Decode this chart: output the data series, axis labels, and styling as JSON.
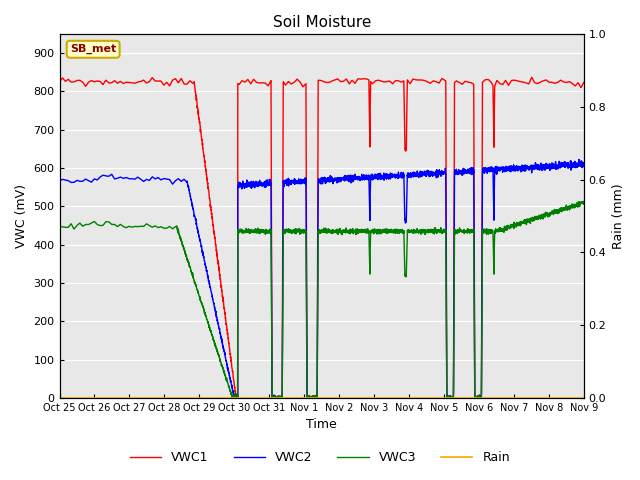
{
  "title": "Soil Moisture",
  "xlabel": "Time",
  "ylabel_left": "VWC (mV)",
  "ylabel_right": "Rain (mm)",
  "ylim_left": [
    0,
    950
  ],
  "ylim_right": [
    0,
    1.0
  ],
  "yticks_left": [
    0,
    100,
    200,
    300,
    400,
    500,
    600,
    700,
    800,
    900
  ],
  "yticks_right": [
    0.0,
    0.2,
    0.4,
    0.6,
    0.8,
    1.0
  ],
  "annotation": "SB_met",
  "legend_entries": [
    "VWC1",
    "VWC2",
    "VWC3",
    "Rain"
  ],
  "legend_colors": [
    "red",
    "blue",
    "green",
    "orange"
  ],
  "plot_bg_color": "#e8e8e8",
  "xtick_labels": [
    "Oct 25",
    "Oct 26",
    "Oct 27",
    "Oct 28",
    "Oct 29",
    "Oct 30",
    "Oct 31",
    "Nov 1",
    "Nov 2",
    "Nov 3",
    "Nov 4",
    "Nov 5",
    "Nov 6",
    "Nov 7",
    "Nov 8",
    "Nov 9"
  ],
  "vwc1_base": 825,
  "vwc2_base": 565,
  "vwc3_base": 447,
  "drop_day": 3.85,
  "recover_day": 5.05,
  "events": [
    {
      "day": 6.05,
      "dur": 0.35,
      "vwc1_low": 0,
      "vwc2_low": 0,
      "vwc3_low": 0
    },
    {
      "day": 7.05,
      "dur": 0.35,
      "vwc1_low": 0,
      "vwc2_low": 0,
      "vwc3_low": 0
    },
    {
      "day": 8.85,
      "dur": 0.05,
      "vwc1_low": 650,
      "vwc2_low": 460,
      "vwc3_low": 320
    },
    {
      "day": 9.85,
      "dur": 0.1,
      "vwc1_low": 650,
      "vwc2_low": 460,
      "vwc3_low": 320
    },
    {
      "day": 11.05,
      "dur": 0.25,
      "vwc1_low": 0,
      "vwc2_low": 0,
      "vwc3_low": 0
    },
    {
      "day": 11.85,
      "dur": 0.25,
      "vwc1_low": 0,
      "vwc2_low": 0,
      "vwc3_low": 0
    },
    {
      "day": 12.4,
      "dur": 0.05,
      "vwc1_low": 650,
      "vwc2_low": 460,
      "vwc3_low": 320
    }
  ]
}
